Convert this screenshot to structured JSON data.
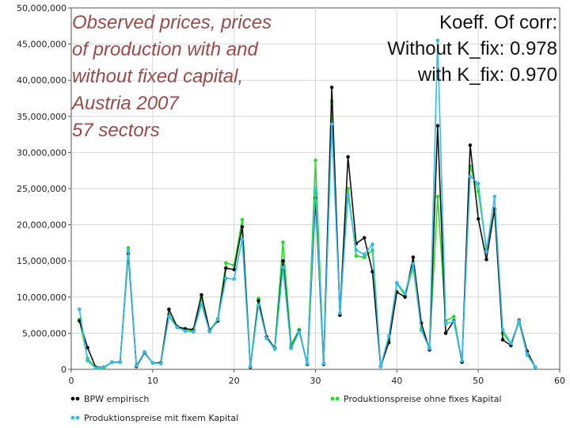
{
  "annotation_title": {
    "lines": [
      "Observed prices, prices",
      "of production with and",
      "without fixed capital,",
      "Austria 2007",
      "57 sectors"
    ]
  },
  "annotation_corr": {
    "lines": [
      "Koeff. Of corr:",
      "Without K_fix: 0.978",
      "with K_fix: 0.970"
    ]
  },
  "chart_data": {
    "type": "line",
    "title": "",
    "xlabel": "",
    "ylabel": "",
    "xlim": [
      0,
      60
    ],
    "ylim": [
      0,
      50000000
    ],
    "x_ticks": [
      0,
      10,
      20,
      30,
      40,
      50,
      60
    ],
    "y_ticks": [
      0,
      5000000,
      10000000,
      15000000,
      20000000,
      25000000,
      30000000,
      35000000,
      40000000,
      45000000,
      50000000
    ],
    "y_tick_labels": [
      "0",
      "5,000,000",
      "10,000,000",
      "15,000,000",
      "20,000,000",
      "25,000,000",
      "30,000,000",
      "35,000,000",
      "40,000,000",
      "45,000,000",
      "50,000,000"
    ],
    "grid": true,
    "legend_position": "bottom",
    "x": [
      1,
      2,
      3,
      4,
      5,
      6,
      7,
      8,
      9,
      10,
      11,
      12,
      13,
      14,
      15,
      16,
      17,
      18,
      19,
      20,
      21,
      22,
      23,
      24,
      25,
      26,
      27,
      28,
      29,
      30,
      31,
      32,
      33,
      34,
      35,
      36,
      37,
      38,
      39,
      40,
      41,
      42,
      43,
      44,
      45,
      46,
      47,
      48,
      49,
      50,
      51,
      52,
      53,
      54,
      55,
      56,
      57
    ],
    "series": [
      {
        "name": "BPW empirisch",
        "color": "#111111",
        "values": [
          6700000,
          3000000,
          300000,
          300000,
          1000000,
          1000000,
          16000000,
          400000,
          2300000,
          900000,
          900000,
          8300000,
          5900000,
          5600000,
          5500000,
          10300000,
          5400000,
          6700000,
          14000000,
          13800000,
          19700000,
          300000,
          9500000,
          4500000,
          2900000,
          15000000,
          3000000,
          5300000,
          700000,
          23700000,
          700000,
          39000000,
          7500000,
          29400000,
          17400000,
          18200000,
          13500000,
          400000,
          3700000,
          10700000,
          10000000,
          15500000,
          6400000,
          2700000,
          33700000,
          5000000,
          6700000,
          1000000,
          31000000,
          20800000,
          15200000,
          22200000,
          4100000,
          3300000,
          6800000,
          2500000,
          300000
        ]
      },
      {
        "name": "Produktionspreise ohne fixes Kapital",
        "color": "#22dd22",
        "values": [
          6900000,
          1500000,
          200000,
          200000,
          1000000,
          1000000,
          16800000,
          400000,
          2300000,
          900000,
          900000,
          7500000,
          5900000,
          5600000,
          5300000,
          9900000,
          5300000,
          7000000,
          14700000,
          14400000,
          20700000,
          400000,
          9800000,
          4300000,
          3000000,
          17600000,
          3400000,
          5500000,
          700000,
          28900000,
          700000,
          37100000,
          7500000,
          25000000,
          15700000,
          15500000,
          16500000,
          400000,
          4000000,
          11900000,
          10200000,
          14100000,
          5600000,
          3000000,
          23900000,
          6700000,
          7300000,
          1000000,
          28100000,
          24600000,
          16700000,
          22000000,
          5000000,
          3600000,
          6500000,
          2000000,
          300000
        ]
      },
      {
        "name": "Produktionspreise mit fixem Kapital",
        "color": "#33bbee",
        "values": [
          8300000,
          1200000,
          200000,
          300000,
          1000000,
          1000000,
          16400000,
          500000,
          2400000,
          900000,
          800000,
          7300000,
          5800000,
          5300000,
          5200000,
          9000000,
          5200000,
          6900000,
          12600000,
          12500000,
          18000000,
          400000,
          8900000,
          4300000,
          2800000,
          14100000,
          2900000,
          5200000,
          800000,
          25000000,
          800000,
          33900000,
          7800000,
          24100000,
          16500000,
          15900000,
          17300000,
          400000,
          4600000,
          12000000,
          10500000,
          14600000,
          5400000,
          2900000,
          45500000,
          6300000,
          6600000,
          1200000,
          26700000,
          25700000,
          16300000,
          23900000,
          5500000,
          3600000,
          6700000,
          2100000,
          300000
        ]
      }
    ]
  }
}
